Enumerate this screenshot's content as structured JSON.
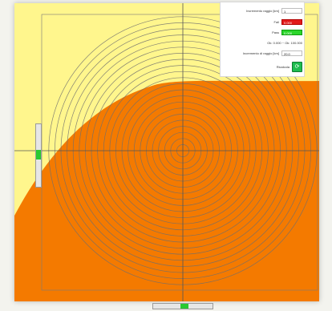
{
  "window": {
    "title": ""
  },
  "settings": {
    "radius_step": {
      "label": "Incremento raggio [km]",
      "value": "1"
    },
    "fail": {
      "label": "Fail",
      "value": "0.000"
    },
    "pass": {
      "label": "Pass",
      "value": "0.000"
    },
    "range": {
      "label": "Ok: 0.000 ~ Ok: 100.000"
    },
    "radius": {
      "label": "Incremento di raggio [km]",
      "value": "20.0"
    },
    "recalc": {
      "label": "Ricalcola",
      "icon": "refresh-icon"
    }
  },
  "colors": {
    "background": "#fff68d",
    "coverage": "#f47a00",
    "fail": "#e21b1b",
    "pass": "#2bd62b",
    "accent": "#1ebd4f",
    "rings": "#6e6e6e"
  },
  "plot": {
    "ring_count": 22,
    "crosshair": true
  },
  "sliders": {
    "vertical": {
      "value": 0.5
    },
    "horizontal": {
      "value": 0.5
    }
  }
}
